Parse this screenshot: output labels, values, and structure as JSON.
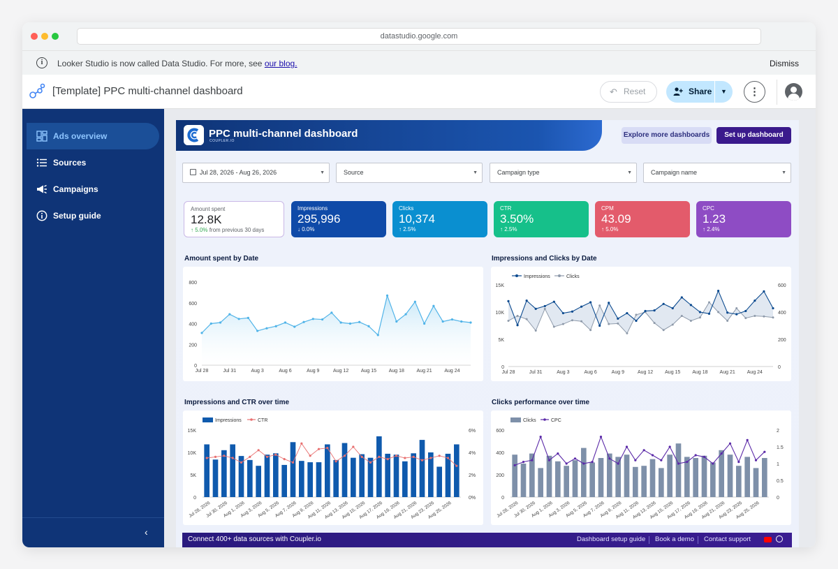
{
  "browser": {
    "url": "datastudio.google.com"
  },
  "notice": {
    "text": "Looker Studio is now called Data Studio. For more, see ",
    "link": "our blog.",
    "dismiss": "Dismiss"
  },
  "header": {
    "title": "[Template] PPC multi-channel dashboard",
    "reset": "Reset",
    "share": "Share"
  },
  "sidebar": {
    "items": [
      {
        "label": "Ads overview",
        "icon": "dashboard-icon"
      },
      {
        "label": "Sources",
        "icon": "list-icon"
      },
      {
        "label": "Campaigns",
        "icon": "megaphone-icon"
      },
      {
        "label": "Setup guide",
        "icon": "info-icon"
      }
    ]
  },
  "report": {
    "title": "PPC multi-channel dashboard",
    "brand": "COUPLER.IO",
    "explore": "Explore more dashboards",
    "setup": "Set up dashboard",
    "filters": {
      "date": "Jul 28, 2026 - Aug 26, 2026",
      "source": "Source",
      "campaign_type": "Campaign type",
      "campaign_name": "Campaign name"
    },
    "kpis": [
      {
        "label": "Amount spent",
        "value": "12.8K",
        "delta_arrow": "↑",
        "delta": "5.0%",
        "delta_suffix": "from previous 30 days",
        "color": "#ffffff"
      },
      {
        "label": "Impressions",
        "value": "295,996",
        "delta": "↓ 0.0%",
        "color": "#0f4aa8"
      },
      {
        "label": "Clicks",
        "value": "10,374",
        "delta": "↑ 2.5%",
        "color": "#0a8fd0"
      },
      {
        "label": "CTR",
        "value": "3.50%",
        "delta": "↑ 2.5%",
        "color": "#16c08a"
      },
      {
        "label": "CPM",
        "value": "43.09",
        "delta": "↑ 5.0%",
        "color": "#e35b6b"
      },
      {
        "label": "CPC",
        "value": "1.23",
        "delta": "↑ 2.4%",
        "color": "#8e4cc4"
      }
    ],
    "footer": {
      "text": "Connect 400+ data sources with Coupler.io",
      "links": [
        "Dashboard setup guide",
        "Book a demo",
        "Contact support"
      ]
    }
  },
  "chart_data": [
    {
      "type": "area",
      "title": "Amount spent by Date",
      "x_ticks": [
        "Jul 28",
        "Jul 31",
        "Aug 3",
        "Aug 6",
        "Aug 9",
        "Aug 12",
        "Aug 15",
        "Aug 18",
        "Aug 21",
        "Aug 24"
      ],
      "y_ticks": [
        "0",
        "200",
        "400",
        "600",
        "800"
      ],
      "ylim": [
        0,
        800
      ],
      "values": [
        310,
        400,
        410,
        490,
        445,
        455,
        330,
        355,
        375,
        410,
        370,
        415,
        445,
        440,
        505,
        410,
        400,
        415,
        375,
        290,
        670,
        420,
        490,
        610,
        400,
        570,
        420,
        440,
        420,
        410
      ],
      "color": "#4fb3e8"
    },
    {
      "type": "line",
      "title": "Impressions and Clicks by Date",
      "legend": [
        "Impressions",
        "Clicks"
      ],
      "x_ticks": [
        "Jul 28",
        "Jul 31",
        "Aug 3",
        "Aug 6",
        "Aug 9",
        "Aug 12",
        "Aug 15",
        "Aug 18",
        "Aug 21",
        "Aug 24"
      ],
      "y_left_ticks": [
        "0",
        "5K",
        "10K",
        "15K"
      ],
      "y_right_ticks": [
        "0",
        "200",
        "400",
        "600"
      ],
      "ylim_left": [
        0,
        15000
      ],
      "ylim_right": [
        0,
        600
      ],
      "series": [
        {
          "name": "Impressions",
          "axis": "left",
          "color": "#0b4a8f",
          "values": [
            12000,
            7600,
            12100,
            10600,
            11100,
            11900,
            9800,
            10100,
            11000,
            11800,
            7500,
            11700,
            8800,
            9800,
            8400,
            10200,
            10300,
            11500,
            10700,
            12700,
            11300,
            10000,
            9700,
            13900,
            9900,
            9600,
            10200,
            12100,
            13800,
            10700
          ]
        },
        {
          "name": "Clicks",
          "axis": "left",
          "color": "#8e9aaa",
          "values": [
            8400,
            9300,
            8700,
            6600,
            10600,
            7300,
            7800,
            8500,
            8300,
            6700,
            11200,
            7800,
            7900,
            6100,
            9500,
            10000,
            8000,
            6700,
            7700,
            9300,
            8400,
            9000,
            11800,
            10000,
            8400,
            10700,
            8900,
            9300,
            9200,
            9000
          ]
        }
      ]
    },
    {
      "type": "bar",
      "title": "Impressions and CTR over time",
      "legend": [
        "Impressions",
        "CTR"
      ],
      "x_ticks": [
        "Jul 28, 2026",
        "Jul 30, 2026",
        "Aug 1, 2026",
        "Aug 3, 2026",
        "Aug 5, 2026",
        "Aug 7, 2026",
        "Aug 9, 2026",
        "Aug 11, 2026",
        "Aug 13, 2026",
        "Aug 15, 2026",
        "Aug 17, 2026",
        "Aug 19, 2026",
        "Aug 21, 2026",
        "Aug 23, 2026",
        "Aug 25, 2026"
      ],
      "y_left_ticks": [
        "0",
        "5K",
        "10K",
        "15K"
      ],
      "y_right_ticks": [
        "0%",
        "2%",
        "4%",
        "6%"
      ],
      "ylim_left": [
        0,
        15000
      ],
      "ylim_right": [
        0,
        6
      ],
      "series": [
        {
          "name": "Impressions",
          "axis": "left",
          "color": "#0f5aad",
          "values": [
            11800,
            8400,
            10500,
            11800,
            9200,
            8300,
            7000,
            9500,
            9800,
            7200,
            12300,
            8100,
            7800,
            7800,
            11800,
            8300,
            12100,
            8800,
            9600,
            8800,
            13600,
            9700,
            9500,
            8000,
            9800,
            12800,
            10000,
            6800,
            9700,
            11800
          ]
        },
        {
          "name": "CTR",
          "axis": "right",
          "color": "#e87070",
          "values": [
            3.5,
            3.6,
            3.7,
            3.5,
            3.1,
            3.6,
            4.2,
            3.6,
            3.8,
            3.4,
            3.1,
            4.8,
            3.7,
            4.3,
            4.4,
            3.2,
            3.7,
            4.5,
            3.6,
            3.1,
            3.6,
            3.4,
            3.7,
            3.5,
            3.6,
            3.3,
            3.5,
            3.7,
            3.5,
            2.8
          ]
        }
      ]
    },
    {
      "type": "bar",
      "title": "Clicks performance over time",
      "legend": [
        "Clicks",
        "CPC"
      ],
      "x_ticks": [
        "Jul 28, 2026",
        "Jul 30, 2026",
        "Aug 1, 2026",
        "Aug 3, 2026",
        "Aug 5, 2026",
        "Aug 7, 2026",
        "Aug 9, 2026",
        "Aug 11, 2026",
        "Aug 13, 2026",
        "Aug 15, 2026",
        "Aug 17, 2026",
        "Aug 19, 2026",
        "Aug 21, 2026",
        "Aug 23, 2026",
        "Aug 25, 2026"
      ],
      "y_left_ticks": [
        "0",
        "200",
        "400",
        "600"
      ],
      "y_right_ticks": [
        "0",
        "0.5",
        "1",
        "1.5",
        "2"
      ],
      "ylim_left": [
        0,
        600
      ],
      "ylim_right": [
        0,
        2
      ],
      "series": [
        {
          "name": "Clicks",
          "axis": "left",
          "color": "#7e90a9",
          "values": [
            380,
            300,
            390,
            260,
            370,
            320,
            280,
            330,
            440,
            310,
            350,
            390,
            360,
            380,
            270,
            280,
            340,
            260,
            380,
            480,
            360,
            350,
            370,
            310,
            420,
            380,
            280,
            360,
            260,
            350
          ]
        },
        {
          "name": "CPC",
          "axis": "right",
          "color": "#5b2aa8",
          "values": [
            0.95,
            1.05,
            1.1,
            1.8,
            1.1,
            1.3,
            1.0,
            1.15,
            1.0,
            1.05,
            1.8,
            1.15,
            1.0,
            1.5,
            1.1,
            1.4,
            1.25,
            1.1,
            1.5,
            1.0,
            1.05,
            1.25,
            1.2,
            1.0,
            1.3,
            1.6,
            1.05,
            1.7,
            1.1,
            1.35
          ]
        }
      ]
    }
  ]
}
